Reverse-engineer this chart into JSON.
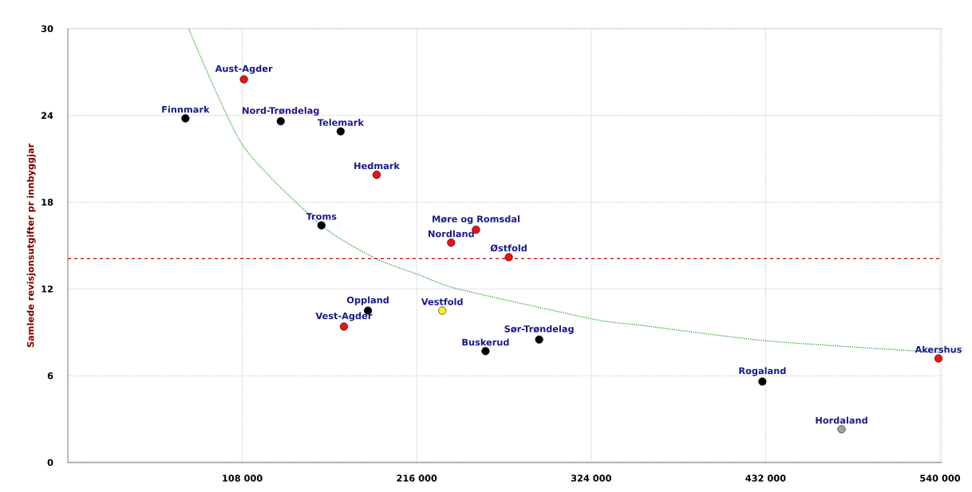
{
  "chart_data": {
    "type": "scatter",
    "ylabel": "Samlede revisjonsutgifter pr innbyggjar",
    "xlim": [
      0,
      541000
    ],
    "ylim": [
      0,
      30
    ],
    "xticks": [
      {
        "value": 108000,
        "label": "108 000"
      },
      {
        "value": 216000,
        "label": "216 000"
      },
      {
        "value": 324000,
        "label": "324 000"
      },
      {
        "value": 432000,
        "label": "432 000"
      },
      {
        "value": 540000,
        "label": "540 000"
      }
    ],
    "yticks": [
      0,
      6,
      12,
      18,
      24,
      30
    ],
    "grid": true,
    "marker": "circle",
    "series": [
      {
        "x": [
          72800,
          109000,
          131800,
          168900,
          191200,
          157000,
          252700,
          237300,
          273000,
          185800,
          170900,
          231800,
          258600,
          291800,
          430000,
          479000,
          539000
        ],
        "values": [
          23.8,
          26.5,
          23.6,
          22.9,
          19.9,
          16.4,
          16.1,
          15.2,
          14.2,
          10.5,
          9.4,
          10.5,
          7.7,
          8.5,
          5.6,
          2.3,
          7.2
        ],
        "colors": [
          "#000000",
          "#ee1111",
          "#000000",
          "#000000",
          "#ee1111",
          "#000000",
          "#ee1111",
          "#ee1111",
          "#ee1111",
          "#000000",
          "#ee1111",
          "#ffee22",
          "#000000",
          "#000000",
          "#000000",
          "#a0a0a0",
          "#ee1111"
        ]
      },
      {
        "type": "line",
        "color": "#33aa33",
        "line_style": "dotted",
        "marker": "none",
        "x": [
          74800,
          108500,
          157000,
          190700,
          217000,
          241700,
          326000,
          354000,
          434000,
          541000
        ],
        "values": [
          30,
          21.9,
          16.4,
          14.1,
          13.0,
          12.0,
          9.9,
          9.5,
          8.4,
          7.6
        ]
      }
    ],
    "ref_lines": [
      {
        "axis": "y",
        "value": 14.1,
        "color": "#cc0000",
        "line_style": "dashed"
      }
    ],
    "annotations": [
      {
        "text": "Finnmark",
        "x": 72800,
        "y": 23.8
      },
      {
        "text": "Aust-Agder",
        "x": 109000,
        "y": 26.5
      },
      {
        "text": "Nord-Trøndelag",
        "x": 131800,
        "y": 23.6
      },
      {
        "text": "Telemark",
        "x": 168900,
        "y": 22.9
      },
      {
        "text": "Hedmark",
        "x": 191200,
        "y": 19.9
      },
      {
        "text": "Troms",
        "x": 157000,
        "y": 16.4
      },
      {
        "text": "Møre og Romsdal",
        "x": 252700,
        "y": 16.1
      },
      {
        "text": "Nordland",
        "x": 237300,
        "y": 15.2
      },
      {
        "text": "Østfold",
        "x": 273000,
        "y": 14.2
      },
      {
        "text": "Oppland",
        "x": 185800,
        "y": 10.5
      },
      {
        "text": "Vest-Agder",
        "x": 170900,
        "y": 9.4
      },
      {
        "text": "Vestfold",
        "x": 231800,
        "y": 10.5
      },
      {
        "text": "Buskerud",
        "x": 258600,
        "y": 7.7
      },
      {
        "text": "Sør-Trøndelag",
        "x": 291800,
        "y": 8.5
      },
      {
        "text": "Rogaland",
        "x": 430000,
        "y": 5.6
      },
      {
        "text": "Hordaland",
        "x": 479000,
        "y": 2.3
      },
      {
        "text": "Akershus",
        "x": 539000,
        "y": 7.2
      }
    ]
  }
}
